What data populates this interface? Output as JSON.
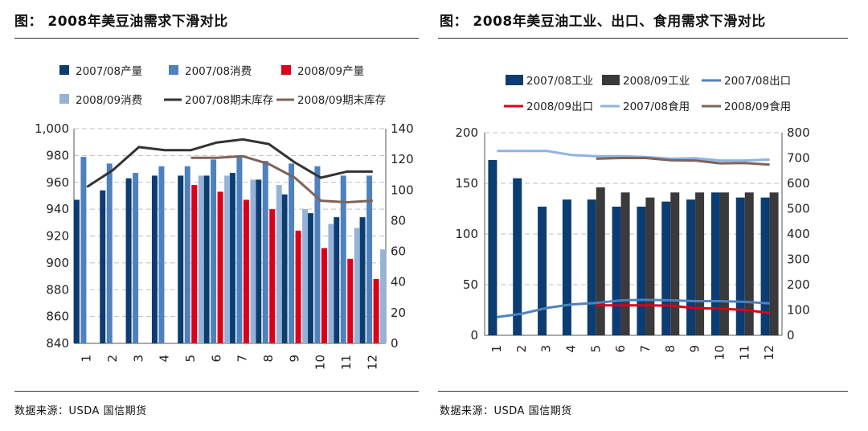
{
  "left": {
    "title": "图：  2008年美豆油需求下滑对比",
    "source": "数据来源：USDA  国信期货",
    "chart_data": {
      "type": "bar",
      "categories": [
        "1",
        "2",
        "3",
        "4",
        "5",
        "6",
        "7",
        "8",
        "9",
        "10",
        "11",
        "12"
      ],
      "ylim_left": [
        840,
        1000
      ],
      "yticks_left": [
        840,
        860,
        880,
        900,
        920,
        940,
        960,
        980,
        1000
      ],
      "ylim_right": [
        0,
        140
      ],
      "yticks_right": [
        0,
        20,
        40,
        60,
        80,
        100,
        120,
        140
      ],
      "series": [
        {
          "name": "2007/08产量",
          "kind": "bar",
          "axis": "left",
          "color": "#0b3c72",
          "values": [
            947,
            954,
            963,
            965,
            965,
            965,
            967,
            962,
            951,
            937,
            934,
            934
          ]
        },
        {
          "name": "2007/08消费",
          "kind": "bar",
          "axis": "left",
          "color": "#4f81bd",
          "values": [
            979,
            974,
            967,
            972,
            972,
            977,
            979,
            976,
            974,
            972,
            965,
            965
          ]
        },
        {
          "name": "2008/09产量",
          "kind": "bar",
          "axis": "left",
          "color": "#d9001b",
          "values": [
            null,
            null,
            null,
            null,
            958,
            953,
            947,
            940,
            924,
            911,
            903,
            888
          ]
        },
        {
          "name": "2008/09消费",
          "kind": "bar",
          "axis": "left",
          "color": "#95b3d7",
          "values": [
            null,
            null,
            null,
            null,
            965,
            965,
            962,
            958,
            940,
            929,
            926,
            910
          ]
        },
        {
          "name": "2007/08期末库存",
          "kind": "line",
          "axis": "right",
          "color": "#333333",
          "values": [
            102,
            113,
            128,
            126,
            126,
            131,
            133,
            130,
            118,
            108,
            112,
            112
          ]
        },
        {
          "name": "2008/09期末库存",
          "kind": "line",
          "axis": "right",
          "color": "#7f6358",
          "values": [
            null,
            null,
            null,
            null,
            121,
            121,
            122,
            117,
            108,
            93,
            92,
            93
          ]
        }
      ]
    }
  },
  "right": {
    "title": "图：  2008年美豆油工业、出口、食用需求下滑对比",
    "source": "数据来源：USDA   国信期货",
    "chart_data": {
      "type": "bar",
      "categories": [
        "1",
        "2",
        "3",
        "4",
        "5",
        "6",
        "7",
        "8",
        "9",
        "10",
        "11",
        "12"
      ],
      "ylim_left": [
        0,
        200
      ],
      "yticks_left": [
        0,
        50,
        100,
        150,
        200
      ],
      "ylim_right": [
        0,
        800
      ],
      "yticks_right": [
        0,
        100,
        200,
        300,
        400,
        500,
        600,
        700,
        800
      ],
      "series": [
        {
          "name": "2007/08工业",
          "kind": "bar",
          "axis": "left",
          "color": "#0b3c72",
          "values": [
            173,
            155,
            127,
            134,
            134,
            127,
            127,
            132,
            134,
            141,
            136,
            136
          ]
        },
        {
          "name": "2008/09工业",
          "kind": "bar",
          "axis": "left",
          "color": "#3a3a3a",
          "values": [
            null,
            null,
            null,
            null,
            146,
            141,
            136,
            141,
            141,
            141,
            141,
            141
          ]
        },
        {
          "name": "2007/08出口",
          "kind": "line",
          "axis": "right",
          "color": "#4f81bd",
          "values": [
            72,
            85,
            108,
            122,
            128,
            138,
            140,
            138,
            135,
            135,
            132,
            126
          ]
        },
        {
          "name": "2008/09出口",
          "kind": "line",
          "axis": "right",
          "color": "#d9001b",
          "values": [
            null,
            null,
            null,
            null,
            118,
            118,
            118,
            117,
            107,
            105,
            100,
            88
          ]
        },
        {
          "name": "2007/08食用",
          "kind": "line",
          "axis": "right",
          "color": "#8db3e2",
          "values": [
            728,
            728,
            728,
            712,
            707,
            707,
            704,
            697,
            699,
            690,
            690,
            694
          ]
        },
        {
          "name": "2008/09食用",
          "kind": "line",
          "axis": "right",
          "color": "#7f6358",
          "values": [
            null,
            null,
            null,
            null,
            697,
            700,
            700,
            691,
            690,
            679,
            680,
            674
          ]
        }
      ]
    }
  }
}
